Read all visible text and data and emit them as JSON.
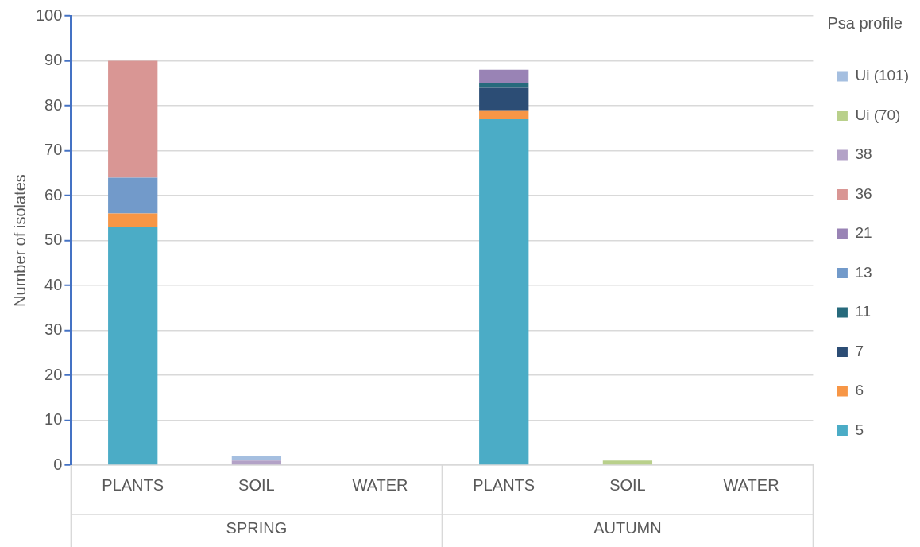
{
  "chart_data": {
    "type": "bar",
    "stacked": true,
    "ylabel": "Number of isolates",
    "legend_title": "Psa profile",
    "legend": "right",
    "grid": "y",
    "categories": [
      "PLANTS",
      "SOIL",
      "WATER",
      "PLANTS",
      "SOIL",
      "WATER"
    ],
    "annotations": [
      "SPRING",
      "AUTUMN"
    ],
    "ylim": [
      0,
      100
    ],
    "yticks": [
      0,
      10,
      20,
      30,
      40,
      50,
      60,
      70,
      80,
      90,
      100
    ],
    "series": [
      {
        "name": "5",
        "color": "#4bacc6",
        "values": [
          53,
          0,
          0,
          77,
          0,
          0
        ]
      },
      {
        "name": "6",
        "color": "#f79646",
        "values": [
          3,
          0,
          0,
          2,
          0,
          0
        ]
      },
      {
        "name": "7",
        "color": "#2c4d75",
        "values": [
          0,
          0,
          0,
          5,
          0,
          0
        ]
      },
      {
        "name": "11",
        "color": "#276a7c",
        "values": [
          0,
          0,
          0,
          1,
          0,
          0
        ]
      },
      {
        "name": "13",
        "color": "#729aca",
        "values": [
          8,
          0,
          0,
          0,
          0,
          0
        ]
      },
      {
        "name": "21",
        "color": "#9983b5",
        "values": [
          0,
          0,
          0,
          3,
          0,
          0
        ]
      },
      {
        "name": "36",
        "color": "#d99694",
        "values": [
          26,
          0,
          0,
          0,
          0,
          0
        ]
      },
      {
        "name": "38",
        "color": "#b3a2c7",
        "values": [
          0,
          1,
          0,
          0,
          0,
          0
        ]
      },
      {
        "name": "Ui (70)",
        "color": "#b9d08b",
        "values": [
          0,
          0,
          0,
          0,
          1,
          0
        ]
      },
      {
        "name": "Ui (101)",
        "color": "#a5bfe0",
        "values": [
          0,
          1,
          0,
          0,
          0,
          0
        ]
      }
    ]
  }
}
